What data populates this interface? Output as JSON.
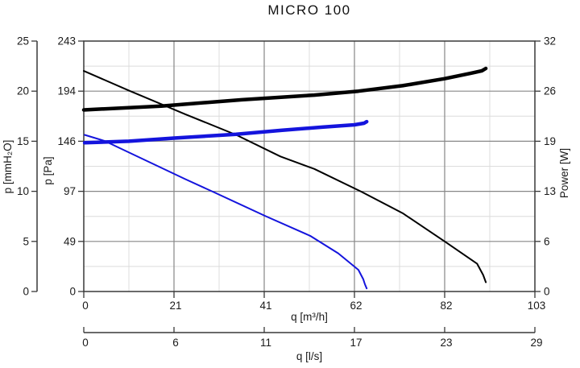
{
  "title": "MICRO 100",
  "chart_data": {
    "type": "line",
    "title": "MICRO 100",
    "grid": "major and minor gridlines, on",
    "legend": "none",
    "axes": {
      "x_m3h": {
        "label": "q [m³/h]",
        "range": [
          0,
          103
        ],
        "tick_labels": [
          "0",
          "21",
          "41",
          "62",
          "82",
          "103"
        ]
      },
      "x_ls": {
        "label": "q [l/s]",
        "range": [
          0,
          28.6
        ],
        "tick_labels": [
          "0",
          "6",
          "11",
          "17",
          "23",
          "29"
        ]
      },
      "y_mmh2o": {
        "label": "p [mmH₂O]",
        "range": [
          0,
          25
        ],
        "tick_labels": [
          "0",
          "5",
          "10",
          "15",
          "20",
          "25"
        ]
      },
      "y_pa": {
        "label": "p [Pa]",
        "range": [
          0,
          243
        ],
        "tick_labels": [
          "0",
          "49",
          "97",
          "146",
          "194",
          "243"
        ]
      },
      "y_w": {
        "label": "Power [W]",
        "range": [
          0,
          32
        ],
        "tick_labels": [
          "0",
          "6",
          "13",
          "19",
          "26",
          "32"
        ]
      }
    },
    "series": [
      {
        "name": "pressure-curve-speed-2",
        "axis": "pa",
        "color": "#000000",
        "width": 2,
        "points": [
          [
            0,
            214
          ],
          [
            10.3,
            195
          ],
          [
            23.2,
            172
          ],
          [
            34.8,
            152
          ],
          [
            44.9,
            131
          ],
          [
            52.6,
            119
          ],
          [
            63.3,
            97
          ],
          [
            72.8,
            76
          ],
          [
            82.6,
            48
          ],
          [
            89.8,
            27
          ],
          [
            91.2,
            16
          ],
          [
            91.8,
            9
          ]
        ]
      },
      {
        "name": "pressure-curve-speed-1",
        "axis": "pa",
        "color": "#1414dd",
        "width": 2,
        "points": [
          [
            0.2,
            152
          ],
          [
            4.8,
            146
          ],
          [
            23.2,
            109
          ],
          [
            29.4,
            97
          ],
          [
            41.6,
            73
          ],
          [
            51.7,
            54
          ],
          [
            58.1,
            37
          ],
          [
            62.7,
            21
          ],
          [
            63.8,
            12
          ],
          [
            64.2,
            7
          ],
          [
            64.6,
            3
          ]
        ]
      },
      {
        "name": "power-curve-speed-2",
        "axis": "w",
        "color": "#000000",
        "width": 4.5,
        "points": [
          [
            0,
            23.2
          ],
          [
            17.7,
            23.7
          ],
          [
            36.1,
            24.5
          ],
          [
            52.6,
            25.1
          ],
          [
            62.7,
            25.6
          ],
          [
            72.8,
            26.3
          ],
          [
            82.4,
            27.2
          ],
          [
            88.5,
            27.9
          ],
          [
            90.9,
            28.2
          ],
          [
            91.8,
            28.5
          ]
        ]
      },
      {
        "name": "power-curve-speed-1",
        "axis": "w",
        "color": "#1414dd",
        "width": 4.5,
        "points": [
          [
            0.2,
            19.0
          ],
          [
            10.3,
            19.2
          ],
          [
            20.6,
            19.6
          ],
          [
            34.8,
            20.1
          ],
          [
            45.3,
            20.6
          ],
          [
            54.4,
            21.0
          ],
          [
            61.8,
            21.3
          ],
          [
            64.0,
            21.5
          ],
          [
            64.6,
            21.7
          ]
        ]
      }
    ],
    "colors": {
      "major_grid": "#878787",
      "minor_grid": "#dcdcdc",
      "border": "#383838",
      "text": "#1a1a1a",
      "blue_series": "#1414dd",
      "black_series": "#000000"
    }
  }
}
